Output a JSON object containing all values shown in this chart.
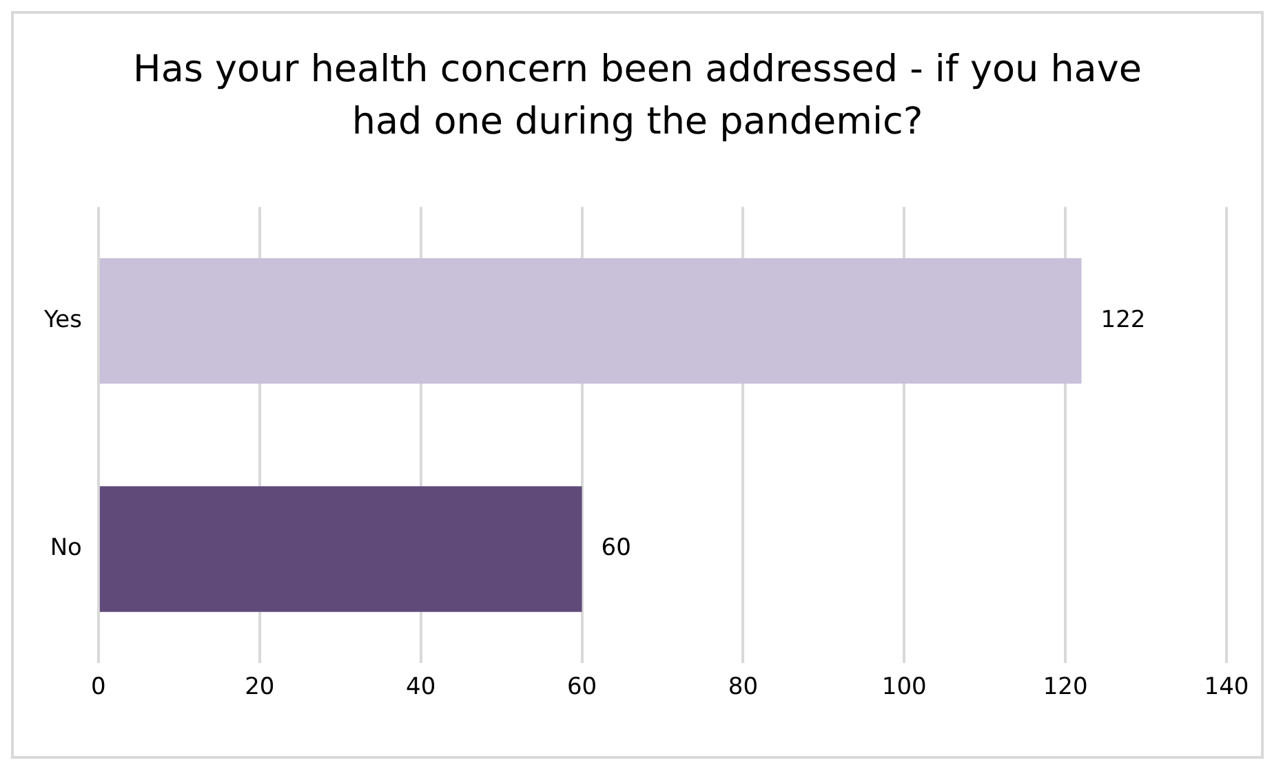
{
  "chart_data": {
    "type": "bar",
    "orientation": "horizontal",
    "title": "Has your health concern been addressed - if you have had one during the pandemic?",
    "categories": [
      "Yes",
      "No"
    ],
    "values": [
      122,
      60
    ],
    "colors": [
      "#c9c0da",
      "#5f4a7a"
    ],
    "xlim": [
      0,
      140
    ],
    "xticks": [
      0,
      20,
      40,
      60,
      80,
      100,
      120,
      140
    ],
    "grid": "x",
    "data_labels": true
  }
}
